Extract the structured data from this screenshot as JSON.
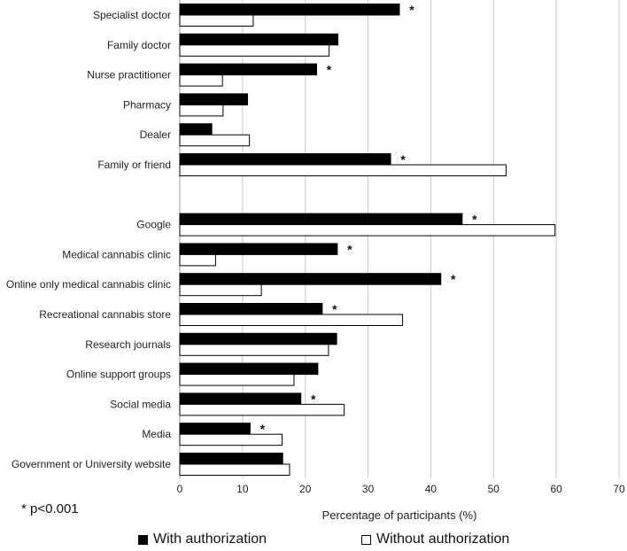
{
  "chart_data": {
    "type": "bar",
    "orientation": "horizontal",
    "xlabel": "Percentage of participants (%)",
    "xlim": [
      0,
      70
    ],
    "xticks": [
      0,
      10,
      20,
      30,
      40,
      50,
      60,
      70
    ],
    "grid": true,
    "footnote": "* p<0.001",
    "legend_position": "bottom",
    "series": [
      {
        "name": "With authorization",
        "color": "#000000"
      },
      {
        "name": "Without authorization",
        "color": "#ffffff"
      }
    ],
    "groups": [
      {
        "categories": [
          {
            "label": "Specialist doctor",
            "values": [
              35.0,
              11.7
            ],
            "sig": true
          },
          {
            "label": "Family doctor",
            "values": [
              25.2,
              23.8
            ],
            "sig": false
          },
          {
            "label": "Nurse practitioner",
            "values": [
              21.8,
              6.8
            ],
            "sig": true
          },
          {
            "label": "Pharmacy",
            "values": [
              10.8,
              6.9
            ],
            "sig": false
          },
          {
            "label": "Dealer",
            "values": [
              5.1,
              11.1
            ],
            "sig": false
          },
          {
            "label": "Family or friend",
            "values": [
              33.6,
              52.0
            ],
            "sig": true
          }
        ]
      },
      {
        "categories": [
          {
            "label": "Google",
            "values": [
              45.0,
              59.8
            ],
            "sig": true
          },
          {
            "label": "Medical cannabis clinic",
            "values": [
              25.1,
              5.7
            ],
            "sig": true
          },
          {
            "label": "Online only medical cannabis clinic",
            "values": [
              41.6,
              13.0
            ],
            "sig": true
          },
          {
            "label": "Recreational cannabis store",
            "values": [
              22.7,
              35.5
            ],
            "sig": true
          },
          {
            "label": "Research journals",
            "values": [
              25.0,
              23.7
            ],
            "sig": false
          },
          {
            "label": "Online support groups",
            "values": [
              22.0,
              18.2
            ],
            "sig": false
          },
          {
            "label": "Social media",
            "values": [
              19.3,
              26.2
            ],
            "sig": true
          },
          {
            "label": "Media",
            "values": [
              11.2,
              16.3
            ],
            "sig": true
          },
          {
            "label": "Government or University website",
            "values": [
              16.4,
              17.5
            ],
            "sig": false
          }
        ]
      }
    ]
  }
}
